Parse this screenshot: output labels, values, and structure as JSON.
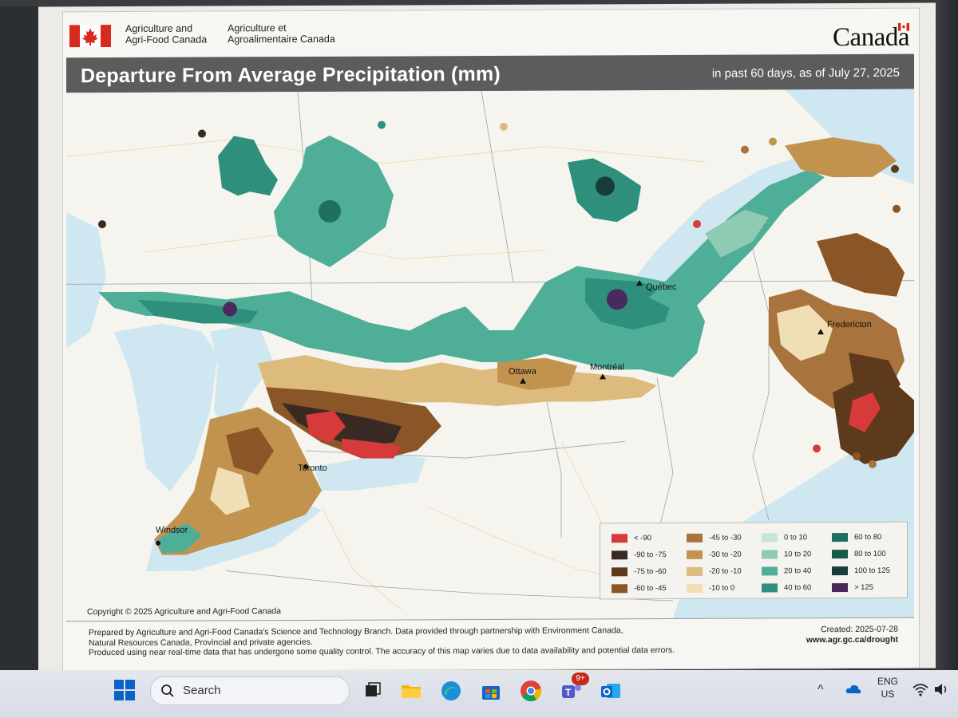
{
  "header": {
    "dept_en_line1": "Agriculture and",
    "dept_en_line2": "Agri-Food Canada",
    "dept_fr_line1": "Agriculture et",
    "dept_fr_line2": "Agroalimentaire Canada",
    "wordmark": "Canada",
    "title": "Departure From Average Precipitation (mm)",
    "subtitle": "in past 60 days, as of July 27, 2025"
  },
  "cities": [
    {
      "name": "Québec"
    },
    {
      "name": "Fredericton"
    },
    {
      "name": "Ottawa"
    },
    {
      "name": "Montréal"
    },
    {
      "name": "Toronto"
    },
    {
      "name": "Windsor"
    }
  ],
  "legend": {
    "items": [
      {
        "label": "< -90",
        "color": "#d63a3a"
      },
      {
        "label": "-90 to -75",
        "color": "#3a2a24"
      },
      {
        "label": "-75 to -60",
        "color": "#5e3a1c"
      },
      {
        "label": "-60 to -45",
        "color": "#8a5627"
      },
      {
        "label": "-45 to -30",
        "color": "#a8733c"
      },
      {
        "label": "-30 to -20",
        "color": "#c2934f"
      },
      {
        "label": "-20 to -10",
        "color": "#dcbb7c"
      },
      {
        "label": "-10 to 0",
        "color": "#f0dfb4"
      },
      {
        "label": "0 to 10",
        "color": "#c8e4d4"
      },
      {
        "label": "10 to 20",
        "color": "#8fcab2"
      },
      {
        "label": "20 to 40",
        "color": "#4fae98"
      },
      {
        "label": "40 to 60",
        "color": "#2e8f7c"
      },
      {
        "label": "60 to 80",
        "color": "#20705f"
      },
      {
        "label": "80 to 100",
        "color": "#1a5a4a"
      },
      {
        "label": "100 to 125",
        "color": "#163e38"
      },
      {
        "label": "> 125",
        "color": "#4a2a5e"
      }
    ]
  },
  "copyright": "Copyright © 2025 Agriculture and Agri-Food Canada",
  "footer": {
    "line1": "Prepared by Agriculture and Agri-Food Canada's Science and Technology Branch. Data provided through partnership with Environment Canada,",
    "line2": "Natural Resources Canada, Provincial and private agencies.",
    "line3": "Produced using near real-time data that has undergone some quality control. The accuracy of this map varies due to data availability and potential data errors.",
    "created": "Created: 2025-07-28",
    "site": "www.agr.gc.ca/drought"
  },
  "taskbar": {
    "search_placeholder": "Search",
    "teams_badge": "9+",
    "lang_line1": "ENG",
    "lang_line2": "US"
  }
}
